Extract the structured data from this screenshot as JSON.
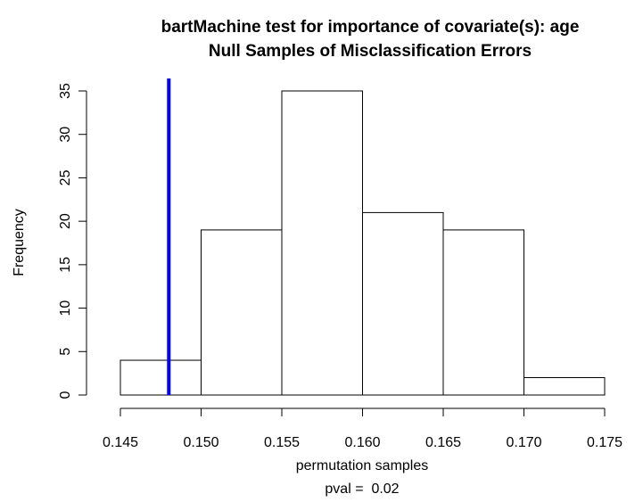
{
  "chart_data": {
    "type": "histogram",
    "title_lines": [
      "bartMachine test for importance of covariate(s): age",
      "Null Samples of Misclassification Errors"
    ],
    "xlabel": "permutation samples",
    "ylabel": "Frequency",
    "note": "pval =  0.02",
    "bins": [
      0.145,
      0.15,
      0.155,
      0.16,
      0.165,
      0.17,
      0.175
    ],
    "values": [
      4,
      19,
      35,
      21,
      19,
      2
    ],
    "color": "#ffffff",
    "edge_color": "#000000",
    "reference_line": {
      "x": 0.148,
      "color": "#0000ff"
    },
    "xlim": [
      0.145,
      0.175
    ],
    "xticks": [
      0.145,
      {
        "value": 0.15,
        "label": "0.150"
      },
      0.155,
      {
        "value": 0.16,
        "label": "0.160"
      },
      0.165,
      {
        "value": 0.17,
        "label": "0.170"
      },
      0.175
    ],
    "ylim": [
      0,
      35
    ],
    "yticks": [
      0,
      5,
      10,
      15,
      20,
      25,
      30,
      35
    ]
  }
}
